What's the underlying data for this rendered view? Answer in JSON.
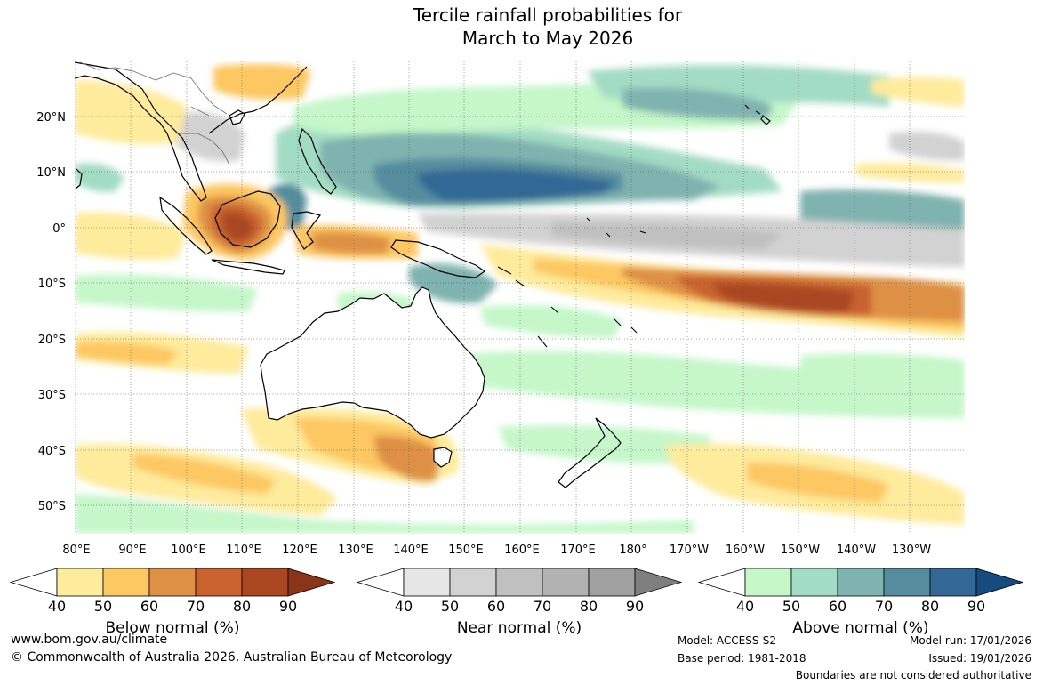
{
  "title": {
    "line1": "Tercile rainfall probabilities for",
    "line2": "March to May 2026"
  },
  "map": {
    "lat_labels": [
      "20°N",
      "10°N",
      "0°",
      "10°S",
      "20°S",
      "30°S",
      "40°S",
      "50°S"
    ],
    "lon_labels": [
      "80°E",
      "90°E",
      "100°E",
      "110°E",
      "120°E",
      "130°E",
      "140°E",
      "150°E",
      "160°E",
      "170°E",
      "180°",
      "170°W",
      "160°W",
      "150°W",
      "140°W",
      "130°W"
    ]
  },
  "legends": {
    "below": {
      "label": "Below normal (%)",
      "ticks": [
        "40",
        "50",
        "60",
        "70",
        "80",
        "90"
      ],
      "colors": [
        "#ffffff",
        "#feeb9c",
        "#fdc762",
        "#de9145",
        "#c9622f",
        "#aa4620",
        "#8b3518"
      ]
    },
    "near": {
      "label": "Near normal (%)",
      "ticks": [
        "40",
        "50",
        "60",
        "70",
        "80",
        "90"
      ],
      "colors": [
        "#ffffff",
        "#e6e6e6",
        "#d2d2d2",
        "#c0c0c0",
        "#b2b2b2",
        "#a1a1a1",
        "#7f7f7f"
      ]
    },
    "above": {
      "label": "Above normal (%)",
      "ticks": [
        "40",
        "50",
        "60",
        "70",
        "80",
        "90"
      ],
      "colors": [
        "#ffffff",
        "#c5f7c9",
        "#a3dcc4",
        "#7fb3af",
        "#558d9e",
        "#336795",
        "#164b80"
      ]
    }
  },
  "footer": {
    "url": "www.bom.gov.au/climate",
    "copyright": "© Commonwealth of Australia 2026, Australian Bureau of Meteorology",
    "model": "Model: ACCESS-S2",
    "base_period": "Base period: 1981-2018",
    "model_run": "Model run: 17/01/2026",
    "issued": "Issued: 19/01/2026",
    "boundaries": "Boundaries are not considered authoritative"
  }
}
